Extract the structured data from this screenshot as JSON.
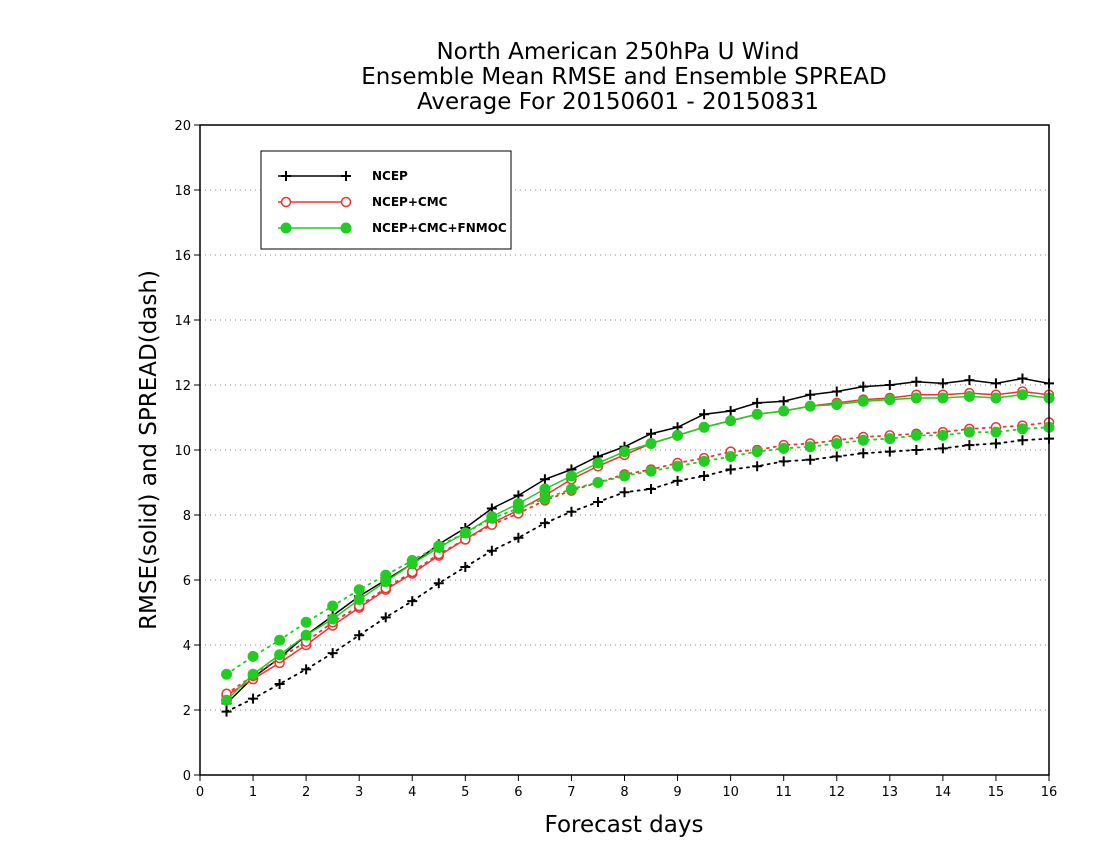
{
  "chart_data": {
    "type": "line",
    "title_lines": [
      "North American 250hPa U Wind",
      "Ensemble Mean RMSE and Ensemble SPREAD",
      "Average For 20150601 - 20150831"
    ],
    "xlabel": "Forecast days",
    "ylabel": "RMSE(solid) and SPREAD(dash)",
    "xlim": [
      0,
      16
    ],
    "ylim": [
      0,
      20
    ],
    "xticks": [
      "0",
      "1",
      "2",
      "3",
      "4",
      "5",
      "6",
      "7",
      "8",
      "9",
      "10",
      "11",
      "12",
      "13",
      "14",
      "15",
      "16"
    ],
    "yticks": [
      "0",
      "2",
      "4",
      "6",
      "8",
      "10",
      "12",
      "14",
      "16",
      "18",
      "20"
    ],
    "grid": "horizontal dotted",
    "legend_position": "top-left",
    "x": [
      0.5,
      1,
      1.5,
      2,
      2.5,
      3,
      3.5,
      4,
      4.5,
      5,
      5.5,
      6,
      6.5,
      7,
      7.5,
      8,
      8.5,
      9,
      9.5,
      10,
      10.5,
      11,
      11.5,
      12,
      12.5,
      13,
      13.5,
      14,
      14.5,
      15,
      15.5,
      16
    ],
    "series": [
      {
        "name": "NCEP",
        "color": "#000000",
        "marker": "plus",
        "rmse": [
          2.2,
          3.0,
          3.6,
          4.3,
          4.9,
          5.5,
          6.0,
          6.5,
          7.1,
          7.6,
          8.2,
          8.6,
          9.1,
          9.4,
          9.8,
          10.1,
          10.5,
          10.7,
          11.1,
          11.2,
          11.45,
          11.5,
          11.7,
          11.8,
          11.95,
          12.0,
          12.1,
          12.05,
          12.15,
          12.05,
          12.2,
          12.05
        ],
        "spread": [
          1.95,
          2.35,
          2.8,
          3.25,
          3.75,
          4.3,
          4.85,
          5.35,
          5.9,
          6.4,
          6.9,
          7.3,
          7.75,
          8.1,
          8.4,
          8.7,
          8.8,
          9.05,
          9.2,
          9.4,
          9.5,
          9.65,
          9.7,
          9.8,
          9.9,
          9.95,
          10.0,
          10.05,
          10.15,
          10.2,
          10.3,
          10.35
        ]
      },
      {
        "name": "NCEP+CMC",
        "color": "#ee3333",
        "marker": "open-circle",
        "rmse": [
          2.45,
          2.95,
          3.45,
          4.0,
          4.6,
          5.15,
          5.7,
          6.2,
          6.75,
          7.25,
          7.75,
          8.15,
          8.6,
          9.1,
          9.5,
          9.85,
          10.2,
          10.45,
          10.7,
          10.9,
          11.1,
          11.2,
          11.35,
          11.45,
          11.55,
          11.6,
          11.7,
          11.7,
          11.75,
          11.7,
          11.8,
          11.7
        ],
        "spread": [
          2.5,
          3.05,
          3.6,
          4.1,
          4.7,
          5.2,
          5.75,
          6.25,
          6.8,
          7.25,
          7.7,
          8.05,
          8.45,
          8.75,
          9.0,
          9.25,
          9.4,
          9.6,
          9.75,
          9.95,
          10.0,
          10.15,
          10.2,
          10.3,
          10.4,
          10.45,
          10.5,
          10.55,
          10.65,
          10.7,
          10.75,
          10.85
        ]
      },
      {
        "name": "NCEP+CMC+FNMOC",
        "color": "#22cc22",
        "marker": "filled-circle",
        "rmse": [
          2.3,
          3.1,
          3.7,
          4.3,
          4.8,
          5.4,
          5.95,
          6.5,
          7.0,
          7.45,
          7.95,
          8.35,
          8.8,
          9.2,
          9.6,
          9.95,
          10.2,
          10.45,
          10.7,
          10.9,
          11.1,
          11.2,
          11.35,
          11.4,
          11.5,
          11.55,
          11.6,
          11.6,
          11.65,
          11.6,
          11.7,
          11.6
        ],
        "spread": [
          3.1,
          3.65,
          4.15,
          4.7,
          5.2,
          5.7,
          6.15,
          6.6,
          7.05,
          7.45,
          7.9,
          8.2,
          8.5,
          8.8,
          9.0,
          9.2,
          9.35,
          9.5,
          9.65,
          9.8,
          9.95,
          10.05,
          10.1,
          10.2,
          10.3,
          10.35,
          10.45,
          10.45,
          10.55,
          10.55,
          10.65,
          10.7
        ]
      }
    ]
  }
}
